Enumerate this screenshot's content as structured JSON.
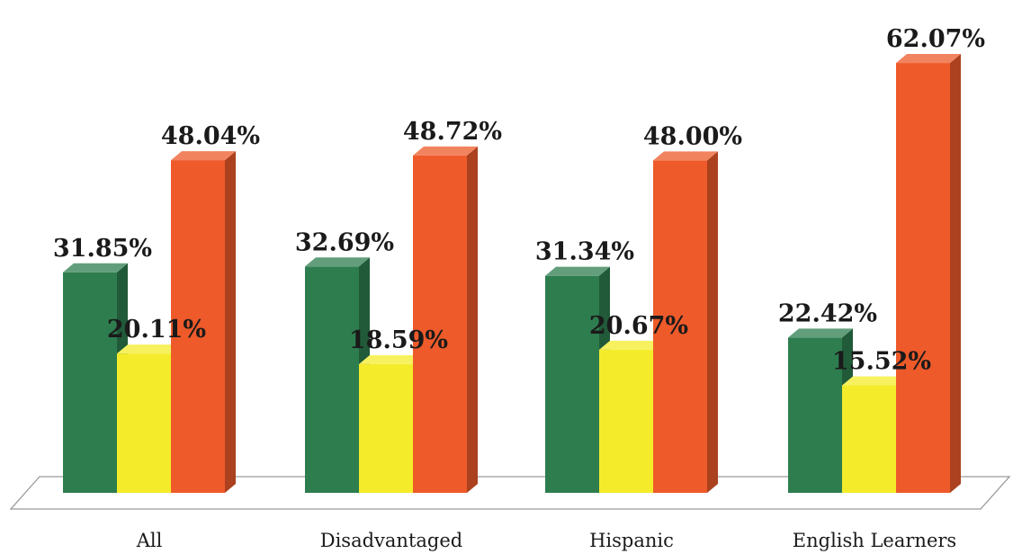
{
  "chart_data": {
    "type": "bar",
    "style": "3d-clustered-column",
    "categories": [
      "All",
      "Disadvantaged",
      "Hispanic",
      "English Learners"
    ],
    "series": [
      {
        "color": "#2e7d4f",
        "values": [
          31.85,
          32.69,
          31.34,
          22.42
        ]
      },
      {
        "color": "#f4ec2a",
        "values": [
          20.11,
          18.59,
          20.67,
          15.52
        ]
      },
      {
        "color": "#ee5a2a",
        "values": [
          48.04,
          48.72,
          48.0,
          62.07
        ]
      }
    ],
    "value_labels": [
      [
        "31.85%",
        "32.69%",
        "31.34%",
        "22.42%"
      ],
      [
        "20.11%",
        "18.59%",
        "20.67%",
        "15.52%"
      ],
      [
        "48.04%",
        "48.72%",
        "48.00%",
        "62.07%"
      ]
    ],
    "title": "",
    "xlabel": "",
    "ylabel": "",
    "ylim": [
      0,
      70
    ],
    "grid": false,
    "legend": "none"
  }
}
